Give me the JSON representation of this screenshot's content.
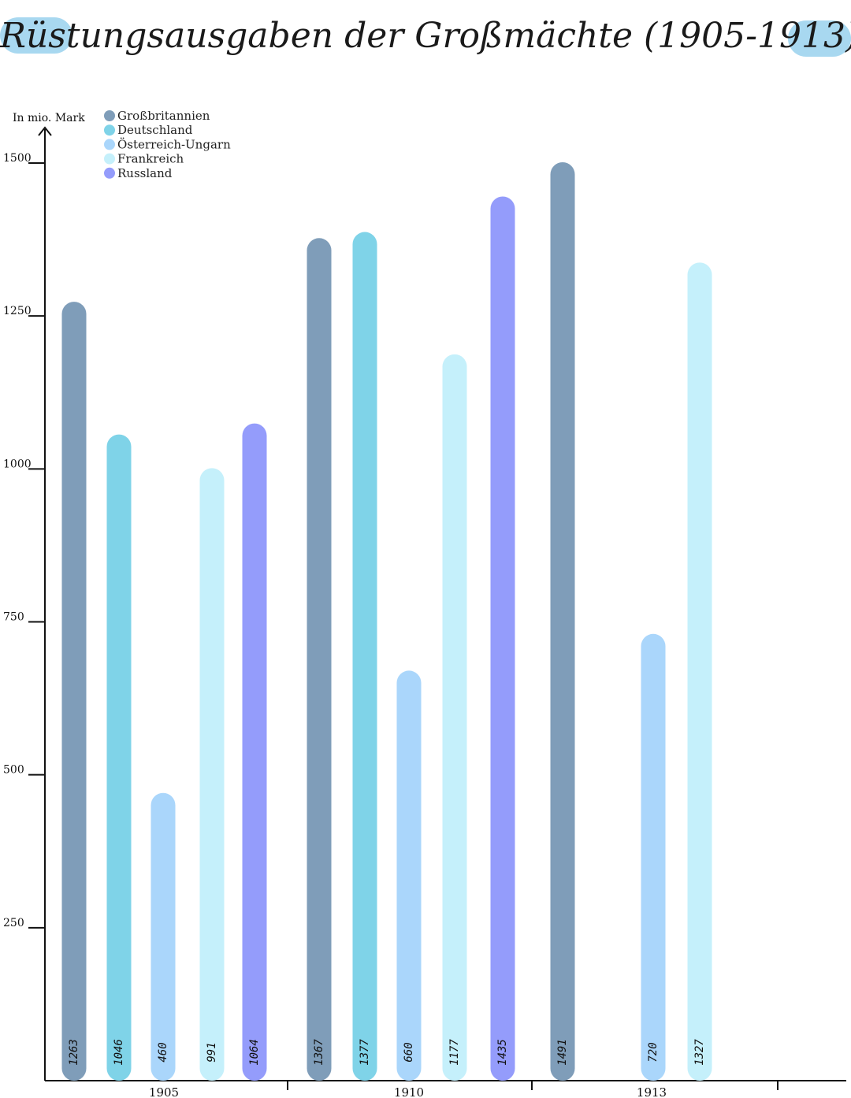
{
  "title": "Rüstungsausgaben der Großmächte (1905-1913)",
  "colors": {
    "title_blob": "#a8d8f0",
    "axis": "#111111"
  },
  "chart_data": {
    "type": "bar",
    "ylabel": "In mio. Mark",
    "ylim": [
      0,
      1500
    ],
    "yticks": [
      "250",
      "500",
      "750",
      "1000",
      "1250",
      "1500"
    ],
    "categories": [
      "1905",
      "1910",
      "1913"
    ],
    "legend_position": "top-left",
    "series": [
      {
        "name": "Großbritannien",
        "color": "#7f9db9",
        "values": [
          1263,
          1367,
          1491
        ]
      },
      {
        "name": "Deutschland",
        "color": "#7fd3e8",
        "values": [
          1046,
          1377,
          null
        ]
      },
      {
        "name": "Österreich-Ungarn",
        "color": "#aad6fb",
        "values": [
          460,
          660,
          720
        ]
      },
      {
        "name": "Frankreich",
        "color": "#c5f0fb",
        "values": [
          991,
          1177,
          1327
        ]
      },
      {
        "name": "Russland",
        "color": "#949cfb",
        "values": [
          1064,
          1435,
          null
        ]
      }
    ],
    "value_labels": [
      [
        "1263",
        "1046",
        "460",
        "991",
        "1064"
      ],
      [
        "1367",
        "1377",
        "660",
        "1177",
        "1435"
      ],
      [
        "1491",
        null,
        "720",
        "1327",
        null
      ]
    ]
  }
}
